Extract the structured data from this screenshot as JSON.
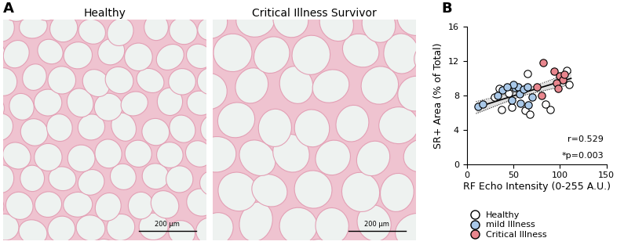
{
  "panel_labels": [
    "A",
    "B"
  ],
  "images": [
    {
      "title": "Healthy",
      "scale_bar": "200 µm"
    },
    {
      "title": "Critical Illness Survivor",
      "scale_bar": "200 µm"
    }
  ],
  "chart_data": {
    "type": "scatter",
    "x_label": "RF Echo Intensity (0-255 A.U.)",
    "y_label": "SR+ Area (% of Total)",
    "xlim": [
      0,
      150
    ],
    "xticks": [
      0,
      50,
      100,
      150
    ],
    "ylim": [
      0,
      16
    ],
    "yticks": [
      0,
      4,
      8,
      12,
      16
    ],
    "legend": "below",
    "series": [
      {
        "name": "Healthy",
        "color": "#ffffff",
        "marker": "o",
        "x": [
          107,
          110,
          35,
          65,
          45,
          30,
          48,
          63,
          68,
          90,
          85,
          37
        ],
        "values": [
          10.9,
          9.3,
          8.8,
          10.6,
          8.3,
          7.8,
          6.6,
          6.3,
          5.8,
          6.4,
          7.0,
          6.4
        ]
      },
      {
        "name": "mild Illness",
        "color": "#a9c8e8",
        "marker": "o",
        "x": [
          12,
          17,
          33,
          38,
          48,
          52,
          55,
          57,
          58,
          61,
          65,
          66,
          70,
          50,
          43
        ],
        "values": [
          6.7,
          7.0,
          8.0,
          8.6,
          7.5,
          8.9,
          9.0,
          8.2,
          7.1,
          8.7,
          9.0,
          6.9,
          7.8,
          9.3,
          9.0
        ]
      },
      {
        "name": "Critical Illness",
        "color": "#e8868e",
        "marker": "o",
        "x": [
          82,
          94,
          100,
          103,
          105,
          96,
          98,
          80,
          75
        ],
        "values": [
          11.8,
          10.8,
          10.3,
          9.8,
          10.5,
          9.5,
          8.8,
          8.0,
          9.0
        ]
      }
    ],
    "trend": {
      "x": [
        10,
        60,
        112
      ],
      "values": [
        6.6,
        8.3,
        10.0
      ],
      "lower": [
        5.9,
        8.0,
        9.3
      ],
      "upper": [
        7.3,
        8.6,
        10.7
      ]
    },
    "annotations": [
      "r=0.529",
      "*p=0.003"
    ]
  }
}
